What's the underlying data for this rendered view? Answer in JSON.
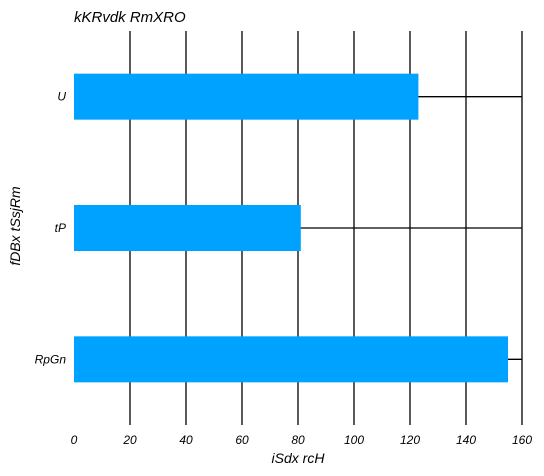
{
  "chart_data": {
    "type": "bar",
    "orientation": "horizontal",
    "title": "kKRvdk RmXRO",
    "xlabel": "iSdx rcH",
    "ylabel": "fDBx tSsjRm",
    "categories": [
      "U",
      "tP",
      "RpGn"
    ],
    "values": [
      123,
      81,
      155
    ],
    "xlim": [
      0,
      160
    ],
    "xticks": [
      "0",
      "20",
      "40",
      "60",
      "80",
      "100",
      "120",
      "140",
      "160"
    ],
    "grid": true,
    "bar_color": "#00a2ff",
    "grid_color": "#000000"
  }
}
